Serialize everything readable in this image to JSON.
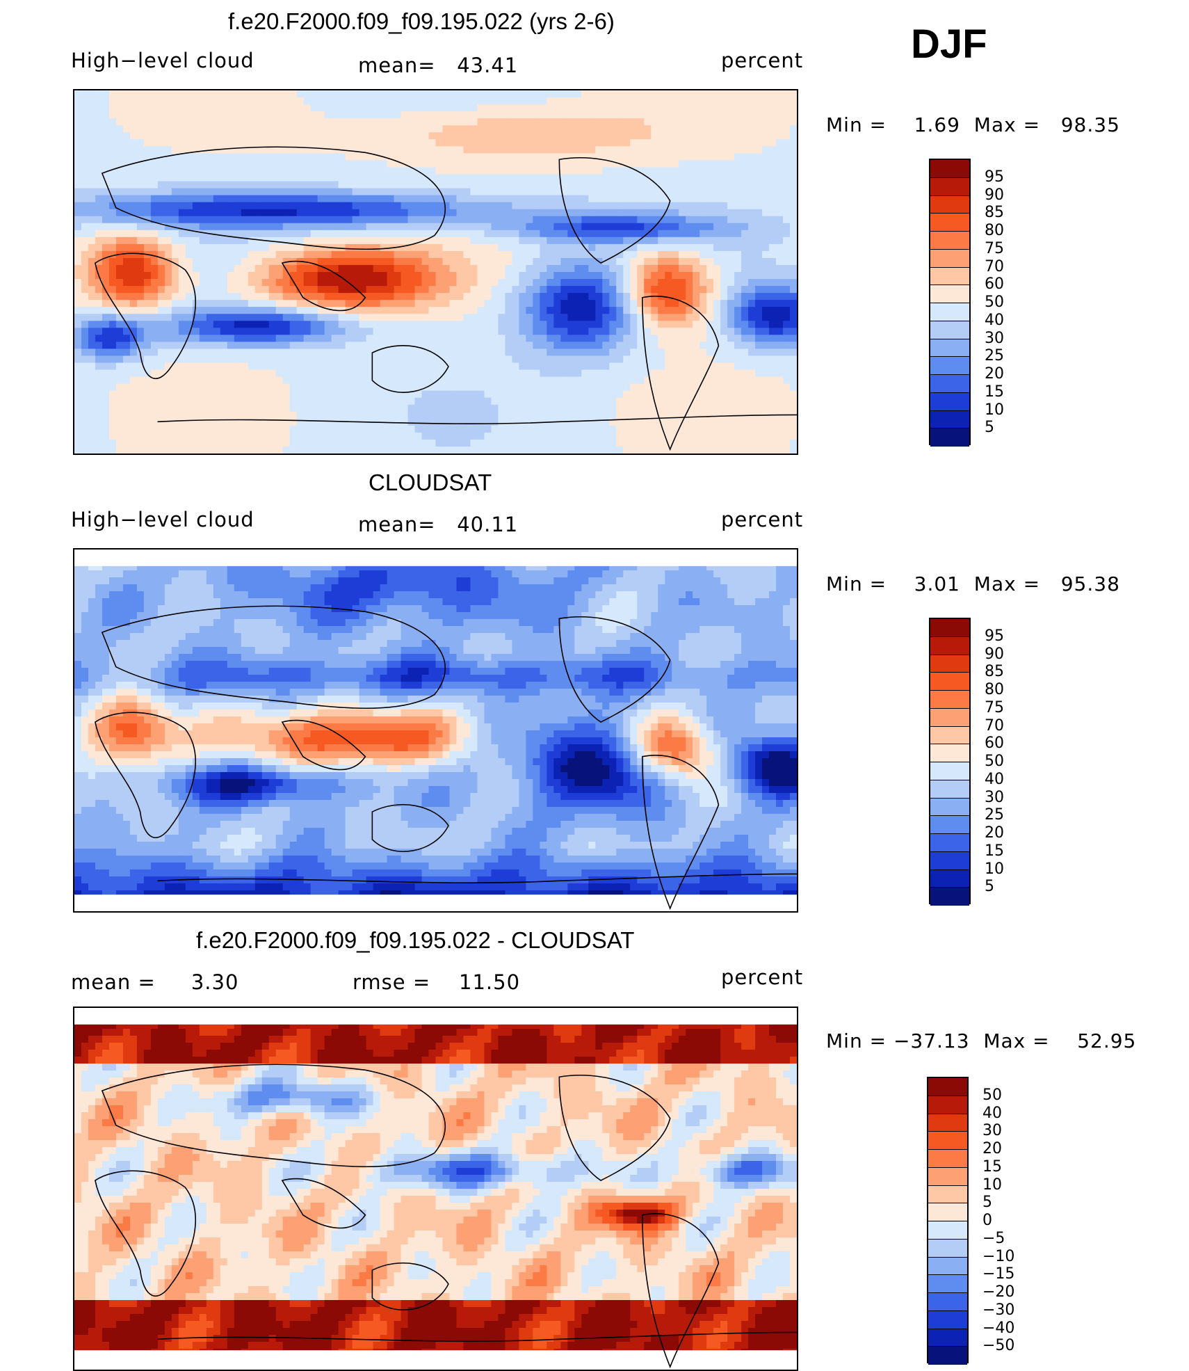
{
  "season": "DJF",
  "panels": [
    {
      "title": "f.e20.F2000.f09_f09.195.022 (yrs 2-6)",
      "left_label": "High−level cloud",
      "center_label": "mean=   43.41",
      "units": "percent",
      "minmax": "Min =    1.69  Max =   98.35",
      "map_style": "model"
    },
    {
      "title": "CLOUDSAT",
      "left_label": "High−level cloud",
      "center_label": "mean=   40.11",
      "units": "percent",
      "minmax": "Min =    3.01  Max =   95.38",
      "map_style": "obs"
    },
    {
      "title": "f.e20.F2000.f09_f09.195.022 - CLOUDSAT",
      "left_label": "mean =     3.30",
      "center_label": "rmse =    11.50",
      "units": "percent",
      "minmax": "Min = −37.13  Max =    52.95",
      "map_style": "diff"
    }
  ],
  "chart_data": [
    {
      "type": "heatmap",
      "title": "f.e20.F2000.f09_f09.195.022 (yrs 2-6)",
      "subtitle": "High-level cloud",
      "units": "percent",
      "mean": 43.41,
      "min": 1.69,
      "max": 98.35,
      "colorbar_levels": [
        "95",
        "90",
        "85",
        "80",
        "75",
        "70",
        "60",
        "50",
        "40",
        "30",
        "25",
        "20",
        "15",
        "10",
        "5"
      ],
      "colorbar_colors": [
        "#8b0a05",
        "#b81a0a",
        "#df3a10",
        "#f65a22",
        "#fb7a45",
        "#fda073",
        "#fec8a6",
        "#fde8d8",
        "#d6e8fb",
        "#b4cdf7",
        "#8ab0f3",
        "#5e8cef",
        "#3c64e8",
        "#1e3cd6",
        "#0c22b4",
        "#07137a"
      ]
    },
    {
      "type": "heatmap",
      "title": "CLOUDSAT",
      "subtitle": "High-level cloud",
      "units": "percent",
      "mean": 40.11,
      "min": 3.01,
      "max": 95.38,
      "colorbar_levels": [
        "95",
        "90",
        "85",
        "80",
        "75",
        "70",
        "60",
        "50",
        "40",
        "30",
        "25",
        "20",
        "15",
        "10",
        "5"
      ],
      "colorbar_colors": [
        "#8b0a05",
        "#b81a0a",
        "#df3a10",
        "#f65a22",
        "#fb7a45",
        "#fda073",
        "#fec8a6",
        "#fde8d8",
        "#d6e8fb",
        "#b4cdf7",
        "#8ab0f3",
        "#5e8cef",
        "#3c64e8",
        "#1e3cd6",
        "#0c22b4",
        "#07137a"
      ]
    },
    {
      "type": "heatmap",
      "title": "f.e20.F2000.f09_f09.195.022 - CLOUDSAT",
      "units": "percent",
      "mean": 3.3,
      "rmse": 11.5,
      "min": -37.13,
      "max": 52.95,
      "colorbar_levels": [
        "50",
        "40",
        "30",
        "20",
        "15",
        "10",
        "5",
        "0",
        "−5",
        "−10",
        "−15",
        "−20",
        "−30",
        "−40",
        "−50"
      ],
      "colorbar_colors": [
        "#8b0a05",
        "#b81a0a",
        "#df3a10",
        "#f65a22",
        "#fb7a45",
        "#fda073",
        "#fec8a6",
        "#fde8d8",
        "#d6e8fb",
        "#b4cdf7",
        "#8ab0f3",
        "#5e8cef",
        "#3c64e8",
        "#1e3cd6",
        "#0c22b4",
        "#07137a"
      ]
    }
  ]
}
